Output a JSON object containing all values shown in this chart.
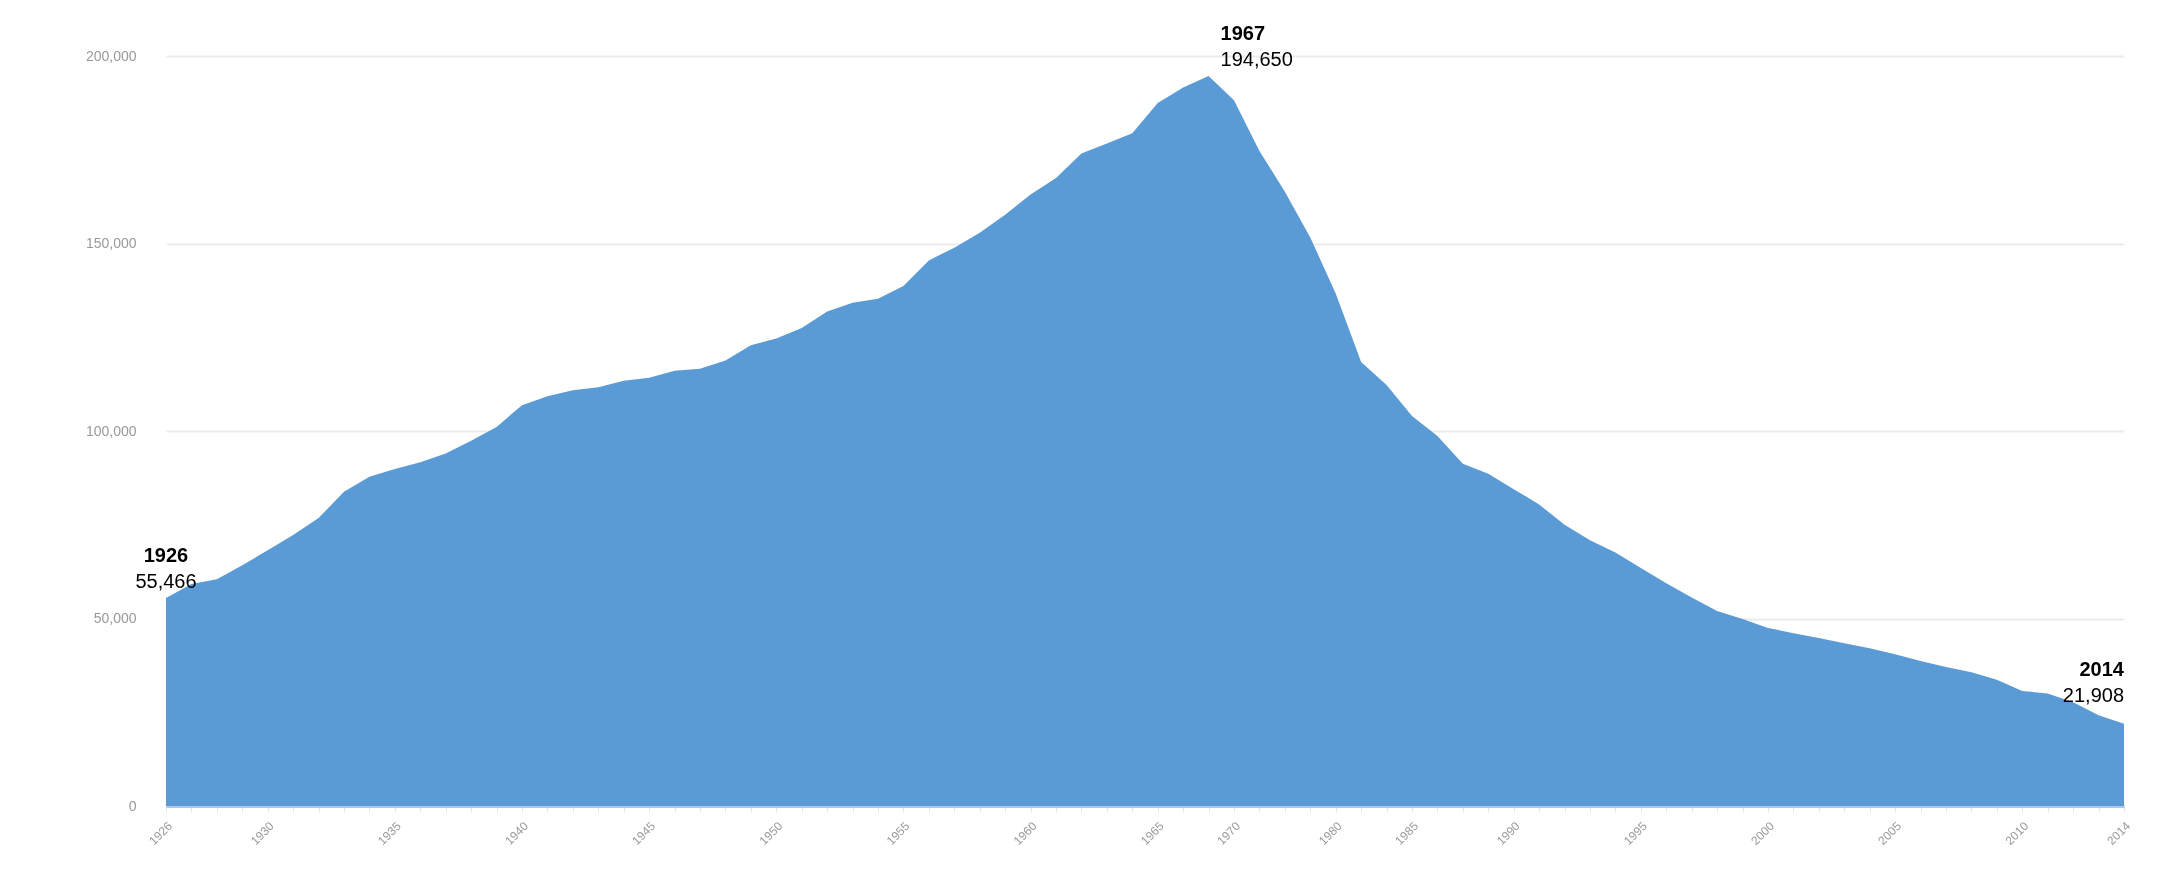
{
  "chart_data": {
    "type": "area",
    "color": "#5b9bd5",
    "categories": [
      "1926",
      null,
      null,
      null,
      "1930",
      null,
      null,
      null,
      null,
      "1935",
      null,
      null,
      null,
      null,
      "1940",
      null,
      null,
      null,
      null,
      "1945",
      null,
      null,
      null,
      null,
      "1950",
      null,
      null,
      null,
      null,
      "1955",
      null,
      null,
      null,
      null,
      "1960",
      null,
      null,
      null,
      null,
      "1965",
      null,
      null,
      "1970",
      null,
      null,
      null,
      "1980",
      null,
      null,
      "1985",
      null,
      null,
      null,
      "1990",
      null,
      null,
      null,
      null,
      "1995",
      null,
      null,
      null,
      null,
      "2000",
      null,
      null,
      null,
      null,
      "2005",
      null,
      null,
      null,
      null,
      "2010",
      null,
      null,
      null,
      "2014"
    ],
    "values": [
      55466,
      59200,
      60500,
      64200,
      68200,
      72300,
      76800,
      83800,
      87800,
      89900,
      91700,
      94000,
      97400,
      101100,
      106900,
      109300,
      110900,
      111700,
      113400,
      114200,
      116100,
      116600,
      118800,
      122900,
      124700,
      127500,
      131900,
      134200,
      135300,
      138700,
      145500,
      148900,
      152900,
      157700,
      163100,
      167500,
      174000,
      176700,
      179400,
      187500,
      191600,
      194650,
      188200,
      174700,
      163800,
      151600,
      136700,
      118400,
      112300,
      104000,
      98700,
      91300,
      88600,
      84500,
      80400,
      75000,
      70900,
      67600,
      63500,
      59400,
      55600,
      52000,
      49900,
      47500,
      46100,
      44800,
      43400,
      42100,
      40500,
      38700,
      37100,
      35700,
      33700,
      30700,
      30000,
      27700,
      24200,
      21908
    ],
    "value_labels": [
      "55,466",
      null,
      null,
      null,
      null,
      null,
      null,
      null,
      null,
      null,
      null,
      null,
      null,
      null,
      null,
      null,
      null,
      null,
      null,
      null,
      null,
      null,
      null,
      null,
      null,
      null,
      null,
      null,
      null,
      null,
      null,
      null,
      null,
      null,
      null,
      null,
      null,
      null,
      null,
      null,
      null,
      "194,650",
      null,
      null,
      null,
      null,
      null,
      null,
      null,
      null,
      null,
      null,
      null,
      null,
      null,
      null,
      null,
      null,
      null,
      null,
      null,
      null,
      null,
      null,
      null,
      null,
      null,
      null,
      null,
      null,
      null,
      null,
      null,
      null,
      null,
      null,
      null,
      "21,908"
    ],
    "annotations": [
      "1926",
      "1967",
      "2014"
    ],
    "ylim": [
      0,
      200000
    ],
    "yticks": [
      0,
      {
        "value": 50000,
        "label": "50,000"
      },
      {
        "value": 100000,
        "label": "100,000"
      },
      {
        "value": 150000,
        "label": "150,000"
      },
      {
        "value": 200000,
        "label": "200,000"
      }
    ],
    "grid": "y"
  }
}
